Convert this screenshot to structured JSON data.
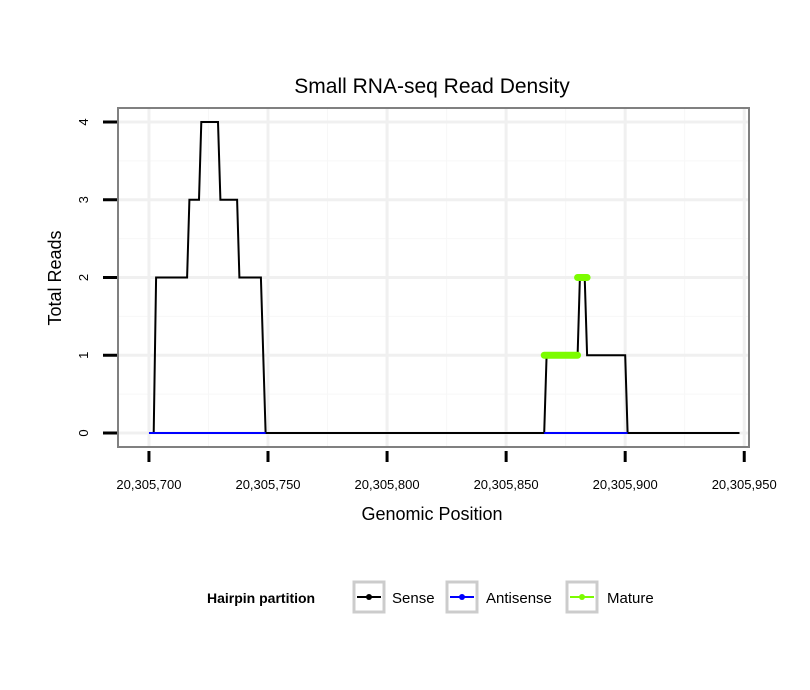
{
  "chart_data": {
    "type": "line",
    "title": "Small RNA-seq Read Density",
    "xlabel": "Genomic Position",
    "ylabel": "Total Reads",
    "xlim": [
      20305687,
      20305952
    ],
    "ylim": [
      -0.18,
      4.18
    ],
    "x_ticks": [
      20305700,
      20305750,
      20305800,
      20305850,
      20305900,
      20305950
    ],
    "x_tick_labels": [
      "20,305,700",
      "20,305,750",
      "20,305,800",
      "20,305,850",
      "20,305,900",
      "20,305,950"
    ],
    "y_ticks": [
      0,
      1,
      2,
      3,
      4
    ],
    "y_tick_labels": [
      "0",
      "1",
      "2",
      "3",
      "4"
    ],
    "grid": true,
    "legend": {
      "title": "Hairpin partition",
      "position": "bottom",
      "entries": [
        "Sense",
        "Antisense",
        "Mature"
      ]
    },
    "series": [
      {
        "name": "Sense",
        "color": "#000000",
        "step": true,
        "x": [
          20305700,
          20305702,
          20305703,
          20305716,
          20305717,
          20305721,
          20305722,
          20305729,
          20305730,
          20305737,
          20305738,
          20305747,
          20305749,
          20305866,
          20305867,
          20305880,
          20305881,
          20305883,
          20305884,
          20305900,
          20305901,
          20305948
        ],
        "y": [
          0,
          0,
          2,
          2,
          3,
          3,
          4,
          4,
          3,
          3,
          2,
          2,
          0,
          0,
          1,
          1,
          2,
          2,
          1,
          1,
          0,
          0
        ]
      },
      {
        "name": "Antisense",
        "color": "#0000ff",
        "step": true,
        "x": [
          20305700,
          20305749,
          20305866,
          20305901
        ],
        "y": [
          0,
          0,
          0,
          0
        ],
        "segments": [
          [
            20305700,
            20305749
          ],
          [
            20305866,
            20305901
          ]
        ]
      },
      {
        "name": "Mature",
        "color": "#7cfc00",
        "segments": [
          {
            "x": [
              20305866,
              20305880
            ],
            "y": 1
          },
          {
            "x": [
              20305880,
              20305884
            ],
            "y": 2
          }
        ]
      }
    ]
  }
}
